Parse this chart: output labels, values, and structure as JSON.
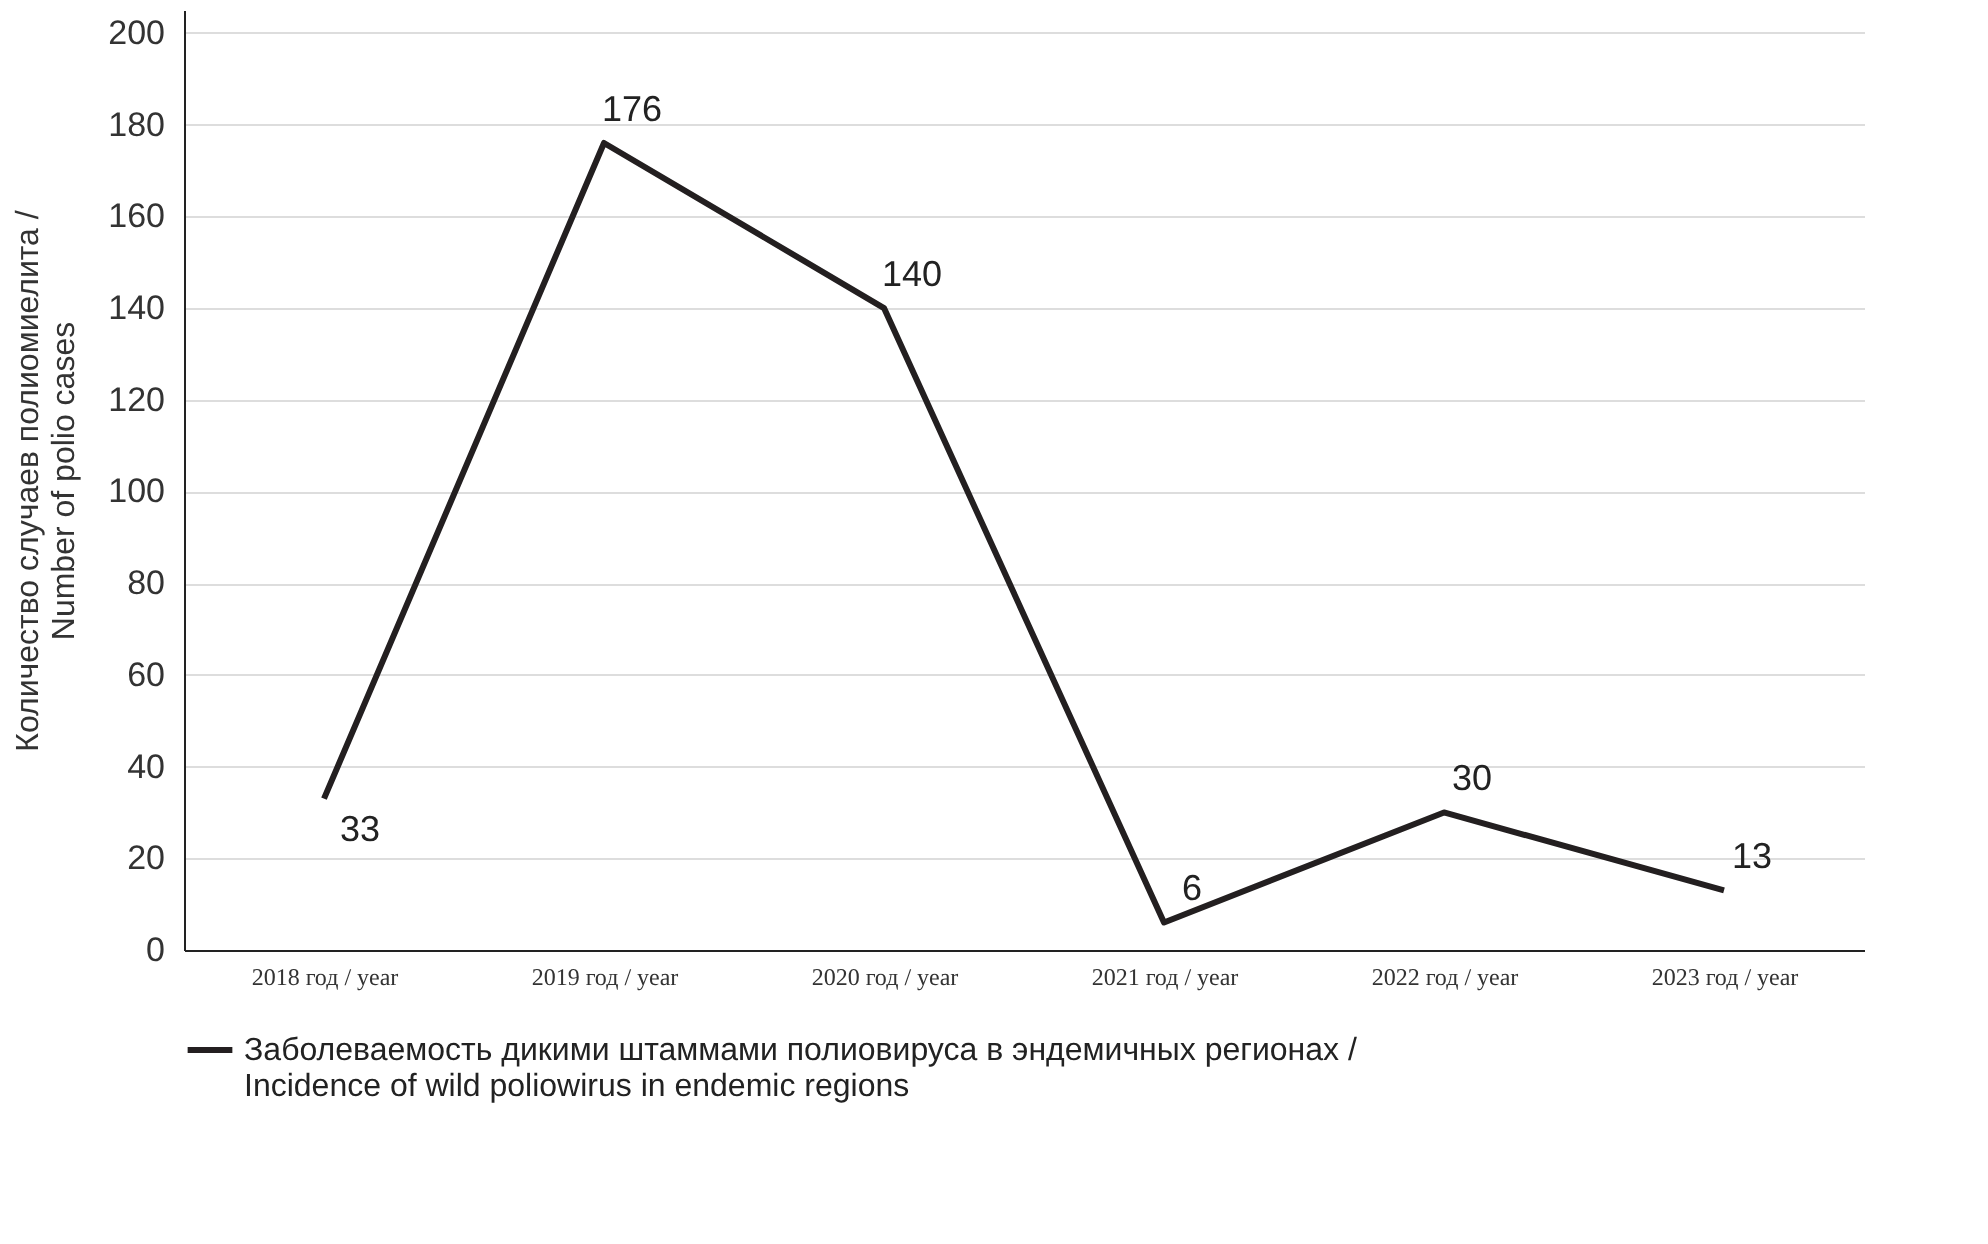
{
  "chart_data": {
    "type": "line",
    "ylabel": "Количество случаев полиомиелита / Number of polio cases",
    "categories": [
      "2018 год / year",
      "2019 год / year",
      "2020 год / year",
      "2021 год / year",
      "2022 год / year",
      "2023 год / year"
    ],
    "series": [
      {
        "name": "Заболеваемость дикими штаммами полиовируса в эндемичных регионах / Incidence of wild poliowirus in endemic regions",
        "color": "#231f20",
        "values": [
          33,
          176,
          140,
          6,
          30,
          13
        ]
      }
    ],
    "ylim": [
      0,
      205
    ],
    "yticks": [
      0,
      20,
      40,
      60,
      80,
      100,
      120,
      140,
      160,
      180,
      200
    ],
    "grid": "y",
    "legend": "bottom",
    "data_labels": true,
    "marker": "none",
    "line_style": "solid"
  }
}
